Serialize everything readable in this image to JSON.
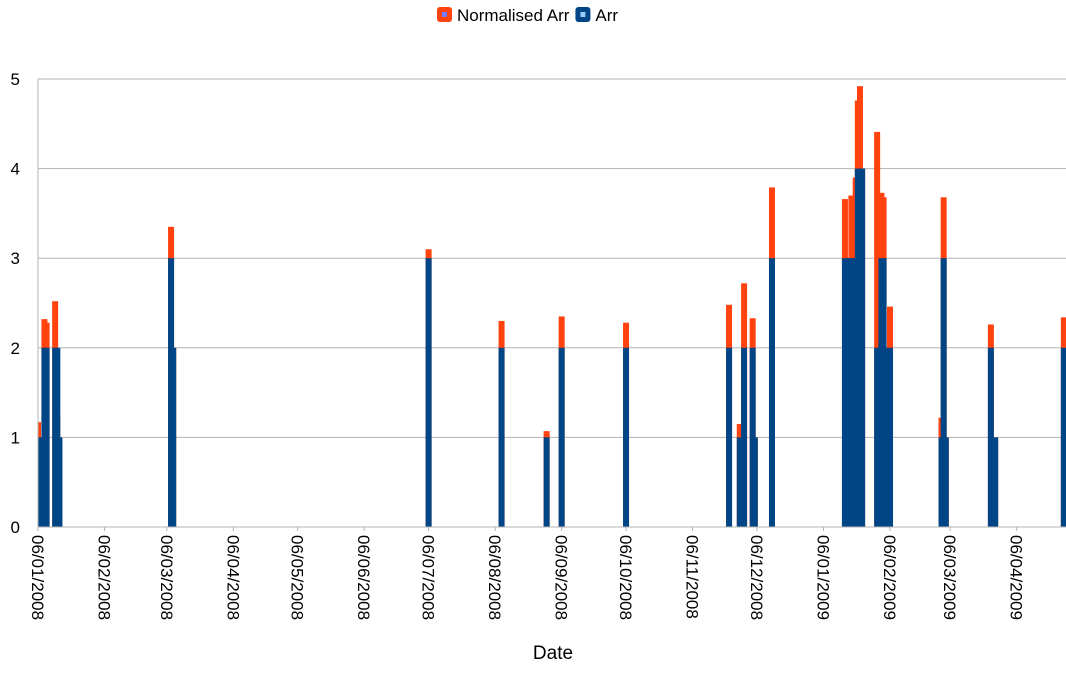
{
  "chart_data": {
    "type": "bar",
    "title": "",
    "xlabel": "Date",
    "ylabel": "",
    "ylim": [
      0,
      5
    ],
    "xlim": [
      "2008-01-06",
      "2009-04-29"
    ],
    "y_ticks": [
      0,
      1,
      2,
      3,
      4,
      5
    ],
    "x_ticks": [
      {
        "date": "2008-01-06",
        "label": "06/01/2008"
      },
      {
        "date": "2008-02-06",
        "label": "06/02/2008"
      },
      {
        "date": "2008-03-06",
        "label": "06/03/2008"
      },
      {
        "date": "2008-04-06",
        "label": "06/04/2008"
      },
      {
        "date": "2008-05-06",
        "label": "06/05/2008"
      },
      {
        "date": "2008-06-06",
        "label": "06/06/2008"
      },
      {
        "date": "2008-07-06",
        "label": "06/07/2008"
      },
      {
        "date": "2008-08-06",
        "label": "06/08/2008"
      },
      {
        "date": "2008-09-06",
        "label": "06/09/2008"
      },
      {
        "date": "2008-10-06",
        "label": "06/10/2008"
      },
      {
        "date": "2008-11-06",
        "label": "06/11/2008"
      },
      {
        "date": "2008-12-06",
        "label": "06/12/2008"
      },
      {
        "date": "2009-01-06",
        "label": "06/01/2009"
      },
      {
        "date": "2009-02-06",
        "label": "06/02/2009"
      },
      {
        "date": "2009-03-06",
        "label": "06/03/2009"
      },
      {
        "date": "2009-04-06",
        "label": "06/04/2009"
      }
    ],
    "grid": true,
    "legend_position": "top-center",
    "series": [
      {
        "name": "Normalised Arr",
        "color": "#ff420e",
        "points": [
          {
            "x": "2008-01-06",
            "y": 1.17
          },
          {
            "x": "2008-01-09",
            "y": 2.32
          },
          {
            "x": "2008-01-10",
            "y": 2.28
          },
          {
            "x": "2008-01-14",
            "y": 2.52
          },
          {
            "x": "2008-01-15",
            "y": 1.25
          },
          {
            "x": "2008-03-08",
            "y": 3.35
          },
          {
            "x": "2008-03-09",
            "y": 2.0
          },
          {
            "x": "2008-07-06",
            "y": 3.1
          },
          {
            "x": "2008-08-09",
            "y": 2.3
          },
          {
            "x": "2008-08-30",
            "y": 1.07
          },
          {
            "x": "2008-09-06",
            "y": 2.35
          },
          {
            "x": "2008-10-06",
            "y": 2.28
          },
          {
            "x": "2008-11-23",
            "y": 2.48
          },
          {
            "x": "2008-11-28",
            "y": 1.15
          },
          {
            "x": "2008-11-30",
            "y": 2.72
          },
          {
            "x": "2008-12-04",
            "y": 2.33
          },
          {
            "x": "2008-12-05",
            "y": 1.0
          },
          {
            "x": "2008-12-13",
            "y": 3.79
          },
          {
            "x": "2009-01-16",
            "y": 3.66
          },
          {
            "x": "2009-01-19",
            "y": 3.7
          },
          {
            "x": "2009-01-21",
            "y": 3.9
          },
          {
            "x": "2009-01-22",
            "y": 4.76
          },
          {
            "x": "2009-01-23",
            "y": 4.92
          },
          {
            "x": "2009-01-24",
            "y": 4.0
          },
          {
            "x": "2009-01-31",
            "y": 4.41
          },
          {
            "x": "2009-02-02",
            "y": 3.73
          },
          {
            "x": "2009-02-03",
            "y": 3.68
          },
          {
            "x": "2009-02-04",
            "y": 2.0
          },
          {
            "x": "2009-02-06",
            "y": 2.46
          },
          {
            "x": "2009-03-02",
            "y": 1.22
          },
          {
            "x": "2009-03-03",
            "y": 3.68
          },
          {
            "x": "2009-03-04",
            "y": 1.0
          },
          {
            "x": "2009-03-25",
            "y": 2.26
          },
          {
            "x": "2009-03-27",
            "y": 1.0
          },
          {
            "x": "2009-04-28",
            "y": 2.34
          }
        ]
      },
      {
        "name": "Arr",
        "color": "#004586",
        "points": [
          {
            "x": "2008-01-06",
            "y": 1
          },
          {
            "x": "2008-01-07",
            "y": 1
          },
          {
            "x": "2008-01-09",
            "y": 2
          },
          {
            "x": "2008-01-10",
            "y": 2
          },
          {
            "x": "2008-01-14",
            "y": 2
          },
          {
            "x": "2008-01-15",
            "y": 2
          },
          {
            "x": "2008-01-16",
            "y": 1
          },
          {
            "x": "2008-03-08",
            "y": 3
          },
          {
            "x": "2008-03-09",
            "y": 2
          },
          {
            "x": "2008-07-06",
            "y": 3
          },
          {
            "x": "2008-08-09",
            "y": 2
          },
          {
            "x": "2008-08-30",
            "y": 1
          },
          {
            "x": "2008-09-06",
            "y": 2
          },
          {
            "x": "2008-10-06",
            "y": 2
          },
          {
            "x": "2008-11-23",
            "y": 2
          },
          {
            "x": "2008-11-28",
            "y": 1
          },
          {
            "x": "2008-11-30",
            "y": 2
          },
          {
            "x": "2008-12-04",
            "y": 2
          },
          {
            "x": "2008-12-05",
            "y": 1
          },
          {
            "x": "2008-12-13",
            "y": 3
          },
          {
            "x": "2009-01-16",
            "y": 3
          },
          {
            "x": "2009-01-17",
            "y": 3
          },
          {
            "x": "2009-01-19",
            "y": 3
          },
          {
            "x": "2009-01-20",
            "y": 3
          },
          {
            "x": "2009-01-22",
            "y": 4
          },
          {
            "x": "2009-01-23",
            "y": 4
          },
          {
            "x": "2009-01-24",
            "y": 4
          },
          {
            "x": "2009-01-31",
            "y": 2
          },
          {
            "x": "2009-02-01",
            "y": 2
          },
          {
            "x": "2009-02-02",
            "y": 3
          },
          {
            "x": "2009-02-03",
            "y": 3
          },
          {
            "x": "2009-02-04",
            "y": 2
          },
          {
            "x": "2009-02-06",
            "y": 2
          },
          {
            "x": "2009-03-02",
            "y": 1
          },
          {
            "x": "2009-03-03",
            "y": 3
          },
          {
            "x": "2009-03-04",
            "y": 1
          },
          {
            "x": "2009-03-25",
            "y": 2
          },
          {
            "x": "2009-03-27",
            "y": 1
          },
          {
            "x": "2009-04-28",
            "y": 2
          }
        ]
      }
    ]
  }
}
